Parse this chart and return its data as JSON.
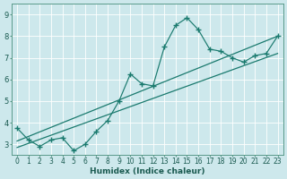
{
  "xlabel": "Humidex (Indice chaleur)",
  "ylabel": "",
  "background_color": "#cde8ec",
  "line_color": "#1a7a6e",
  "grid_color": "#ffffff",
  "xlim": [
    -0.5,
    23.5
  ],
  "ylim": [
    2.5,
    9.5
  ],
  "xticks": [
    0,
    1,
    2,
    3,
    4,
    5,
    6,
    7,
    8,
    9,
    10,
    11,
    12,
    13,
    14,
    15,
    16,
    17,
    18,
    19,
    20,
    21,
    22,
    23
  ],
  "yticks": [
    3,
    4,
    5,
    6,
    7,
    8,
    9
  ],
  "scatter_x": [
    0,
    1,
    2,
    3,
    4,
    5,
    6,
    7,
    8,
    9,
    10,
    11,
    12,
    13,
    14,
    15,
    16,
    17,
    18,
    19,
    20,
    21,
    22,
    23
  ],
  "scatter_y": [
    3.75,
    3.2,
    2.9,
    3.2,
    3.3,
    2.7,
    3.0,
    3.6,
    4.1,
    5.0,
    6.25,
    5.8,
    5.7,
    7.5,
    8.5,
    8.85,
    8.3,
    7.4,
    7.3,
    7.0,
    6.8,
    7.1,
    7.2,
    8.0
  ],
  "line1_x": [
    0,
    23
  ],
  "line1_y": [
    2.85,
    7.2
  ],
  "line2_x": [
    0,
    23
  ],
  "line2_y": [
    3.15,
    8.0
  ],
  "spine_color": "#5a9a8a",
  "tick_fontsize": 5.5,
  "xlabel_fontsize": 6.5,
  "marker": "+",
  "markersize": 4.0
}
